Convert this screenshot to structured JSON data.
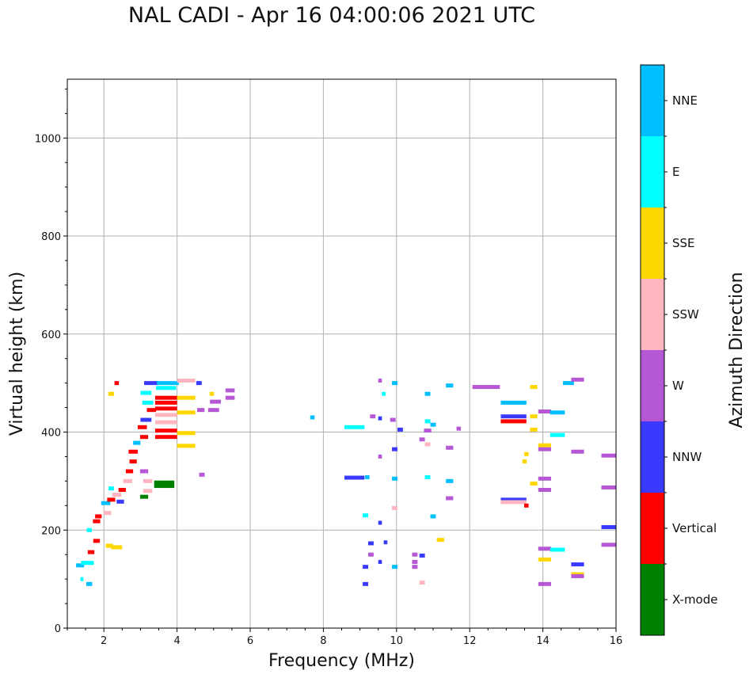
{
  "title": "NAL CADI - Apr 16 04:00:06 2021 UTC",
  "chart_data": {
    "type": "scatter",
    "title": "NAL CADI - Apr 16 04:00:06 2021 UTC",
    "xlabel": "Frequency (MHz)",
    "ylabel": "Virtual height (km)",
    "xlim": [
      1,
      16
    ],
    "ylim": [
      0,
      1120
    ],
    "x_ticks": [
      2,
      4,
      6,
      8,
      10,
      12,
      14,
      16
    ],
    "y_ticks": [
      0,
      200,
      400,
      600,
      800,
      1000
    ],
    "grid": true,
    "colorbar": {
      "label": "Azimuth Direction",
      "categories": [
        {
          "name": "X-mode",
          "color": "#008000"
        },
        {
          "name": "Vertical",
          "color": "#ff0000"
        },
        {
          "name": "NNW",
          "color": "#3a3aff"
        },
        {
          "name": "W",
          "color": "#b657d6"
        },
        {
          "name": "SSW",
          "color": "#ffb6c1"
        },
        {
          "name": "SSE",
          "color": "#ffd700"
        },
        {
          "name": "E",
          "color": "#00ffff"
        },
        {
          "name": "NNE",
          "color": "#00bfff"
        }
      ]
    },
    "echoes": [
      {
        "f": 1.35,
        "h": 128,
        "w": 0.22,
        "dir": "NNE"
      },
      {
        "f": 1.55,
        "h": 133,
        "w": 0.35,
        "dir": "E"
      },
      {
        "f": 1.6,
        "h": 90,
        "w": 0.16,
        "dir": "NNE"
      },
      {
        "f": 1.4,
        "h": 100,
        "w": 0.08,
        "dir": "E"
      },
      {
        "f": 1.65,
        "h": 155,
        "w": 0.18,
        "dir": "Vertical"
      },
      {
        "f": 1.6,
        "h": 200,
        "w": 0.14,
        "dir": "E"
      },
      {
        "f": 1.8,
        "h": 178,
        "w": 0.18,
        "dir": "Vertical"
      },
      {
        "f": 1.8,
        "h": 218,
        "w": 0.2,
        "dir": "Vertical"
      },
      {
        "f": 1.85,
        "h": 228,
        "w": 0.18,
        "dir": "Vertical"
      },
      {
        "f": 2.15,
        "h": 168,
        "w": 0.2,
        "dir": "SSE"
      },
      {
        "f": 2.35,
        "h": 165,
        "w": 0.3,
        "dir": "SSE"
      },
      {
        "f": 2.1,
        "h": 235,
        "w": 0.2,
        "dir": "SSW"
      },
      {
        "f": 2.05,
        "h": 255,
        "w": 0.25,
        "dir": "NNE"
      },
      {
        "f": 2.2,
        "h": 262,
        "w": 0.22,
        "dir": "Vertical"
      },
      {
        "f": 2.35,
        "h": 272,
        "w": 0.25,
        "dir": "SSW"
      },
      {
        "f": 2.45,
        "h": 258,
        "w": 0.2,
        "dir": "NNW"
      },
      {
        "f": 2.2,
        "h": 285,
        "w": 0.15,
        "dir": "E"
      },
      {
        "f": 2.5,
        "h": 282,
        "w": 0.2,
        "dir": "Vertical"
      },
      {
        "f": 2.65,
        "h": 300,
        "w": 0.25,
        "dir": "SSW"
      },
      {
        "f": 2.7,
        "h": 320,
        "w": 0.2,
        "dir": "Vertical"
      },
      {
        "f": 2.8,
        "h": 340,
        "w": 0.2,
        "dir": "Vertical"
      },
      {
        "f": 2.8,
        "h": 360,
        "w": 0.25,
        "dir": "Vertical"
      },
      {
        "f": 2.9,
        "h": 378,
        "w": 0.2,
        "dir": "NNE"
      },
      {
        "f": 2.35,
        "h": 500,
        "w": 0.12,
        "dir": "Vertical"
      },
      {
        "f": 2.2,
        "h": 478,
        "w": 0.16,
        "dir": "SSE"
      },
      {
        "f": 3.1,
        "h": 390,
        "w": 0.22,
        "dir": "Vertical"
      },
      {
        "f": 3.05,
        "h": 410,
        "w": 0.25,
        "dir": "Vertical"
      },
      {
        "f": 3.15,
        "h": 425,
        "w": 0.3,
        "dir": "NNW"
      },
      {
        "f": 3.3,
        "h": 445,
        "w": 0.25,
        "dir": "Vertical"
      },
      {
        "f": 3.2,
        "h": 460,
        "w": 0.3,
        "dir": "E"
      },
      {
        "f": 3.15,
        "h": 480,
        "w": 0.3,
        "dir": "E"
      },
      {
        "f": 3.3,
        "h": 500,
        "w": 0.4,
        "dir": "NNW"
      },
      {
        "f": 3.75,
        "h": 500,
        "w": 0.6,
        "dir": "NNE"
      },
      {
        "f": 3.7,
        "h": 490,
        "w": 0.55,
        "dir": "E"
      },
      {
        "f": 3.7,
        "h": 470,
        "w": 0.6,
        "dir": "Vertical"
      },
      {
        "f": 3.7,
        "h": 460,
        "w": 0.6,
        "dir": "Vertical"
      },
      {
        "f": 3.7,
        "h": 448,
        "w": 0.6,
        "dir": "Vertical"
      },
      {
        "f": 3.7,
        "h": 435,
        "w": 0.6,
        "dir": "SSW"
      },
      {
        "f": 3.7,
        "h": 420,
        "w": 0.6,
        "dir": "SSW"
      },
      {
        "f": 3.7,
        "h": 403,
        "w": 0.6,
        "dir": "Vertical"
      },
      {
        "f": 3.7,
        "h": 390,
        "w": 0.6,
        "dir": "Vertical"
      },
      {
        "f": 3.1,
        "h": 320,
        "w": 0.22,
        "dir": "W"
      },
      {
        "f": 3.2,
        "h": 300,
        "w": 0.25,
        "dir": "SSW"
      },
      {
        "f": 3.2,
        "h": 280,
        "w": 0.25,
        "dir": "SSW"
      },
      {
        "f": 3.1,
        "h": 268,
        "w": 0.22,
        "dir": "X-mode"
      },
      {
        "f": 3.65,
        "h": 297,
        "w": 0.55,
        "dir": "X-mode"
      },
      {
        "f": 3.65,
        "h": 290,
        "w": 0.55,
        "dir": "X-mode"
      },
      {
        "f": 4.25,
        "h": 505,
        "w": 0.5,
        "dir": "SSW"
      },
      {
        "f": 4.6,
        "h": 500,
        "w": 0.15,
        "dir": "NNW"
      },
      {
        "f": 4.25,
        "h": 470,
        "w": 0.5,
        "dir": "SSE"
      },
      {
        "f": 4.25,
        "h": 440,
        "w": 0.5,
        "dir": "SSE"
      },
      {
        "f": 4.25,
        "h": 398,
        "w": 0.5,
        "dir": "SSE"
      },
      {
        "f": 4.25,
        "h": 372,
        "w": 0.5,
        "dir": "SSE"
      },
      {
        "f": 4.65,
        "h": 445,
        "w": 0.2,
        "dir": "W"
      },
      {
        "f": 5.0,
        "h": 445,
        "w": 0.3,
        "dir": "W"
      },
      {
        "f": 5.05,
        "h": 462,
        "w": 0.3,
        "dir": "W"
      },
      {
        "f": 5.45,
        "h": 485,
        "w": 0.25,
        "dir": "W"
      },
      {
        "f": 5.45,
        "h": 470,
        "w": 0.25,
        "dir": "W"
      },
      {
        "f": 4.95,
        "h": 478,
        "w": 0.12,
        "dir": "SSE"
      },
      {
        "f": 4.68,
        "h": 313,
        "w": 0.15,
        "dir": "W"
      },
      {
        "f": 7.7,
        "h": 430,
        "w": 0.12,
        "dir": "NNE"
      },
      {
        "f": 8.85,
        "h": 410,
        "w": 0.55,
        "dir": "E"
      },
      {
        "f": 8.85,
        "h": 307,
        "w": 0.55,
        "dir": "NNW"
      },
      {
        "f": 9.2,
        "h": 308,
        "w": 0.12,
        "dir": "NNE"
      },
      {
        "f": 9.15,
        "h": 230,
        "w": 0.15,
        "dir": "E"
      },
      {
        "f": 9.3,
        "h": 173,
        "w": 0.15,
        "dir": "NNW"
      },
      {
        "f": 9.3,
        "h": 150,
        "w": 0.15,
        "dir": "W"
      },
      {
        "f": 9.15,
        "h": 125,
        "w": 0.15,
        "dir": "NNW"
      },
      {
        "f": 9.15,
        "h": 90,
        "w": 0.15,
        "dir": "NNW"
      },
      {
        "f": 9.55,
        "h": 135,
        "w": 0.1,
        "dir": "NNW"
      },
      {
        "f": 9.55,
        "h": 215,
        "w": 0.1,
        "dir": "NNW"
      },
      {
        "f": 9.55,
        "h": 350,
        "w": 0.1,
        "dir": "W"
      },
      {
        "f": 9.55,
        "h": 428,
        "w": 0.1,
        "dir": "NNW"
      },
      {
        "f": 9.35,
        "h": 432,
        "w": 0.15,
        "dir": "W"
      },
      {
        "f": 9.65,
        "h": 478,
        "w": 0.1,
        "dir": "E"
      },
      {
        "f": 9.55,
        "h": 505,
        "w": 0.1,
        "dir": "W"
      },
      {
        "f": 9.95,
        "h": 500,
        "w": 0.15,
        "dir": "NNE"
      },
      {
        "f": 9.9,
        "h": 425,
        "w": 0.15,
        "dir": "W"
      },
      {
        "f": 10.1,
        "h": 405,
        "w": 0.15,
        "dir": "NNW"
      },
      {
        "f": 9.95,
        "h": 365,
        "w": 0.15,
        "dir": "NNW"
      },
      {
        "f": 9.95,
        "h": 305,
        "w": 0.15,
        "dir": "NNE"
      },
      {
        "f": 9.95,
        "h": 245,
        "w": 0.15,
        "dir": "SSW"
      },
      {
        "f": 9.95,
        "h": 125,
        "w": 0.15,
        "dir": "NNE"
      },
      {
        "f": 9.7,
        "h": 175,
        "w": 0.1,
        "dir": "NNW"
      },
      {
        "f": 10.85,
        "h": 478,
        "w": 0.15,
        "dir": "NNE"
      },
      {
        "f": 10.85,
        "h": 422,
        "w": 0.15,
        "dir": "E"
      },
      {
        "f": 11.0,
        "h": 415,
        "w": 0.15,
        "dir": "NNE"
      },
      {
        "f": 10.85,
        "h": 403,
        "w": 0.2,
        "dir": "W"
      },
      {
        "f": 10.7,
        "h": 385,
        "w": 0.15,
        "dir": "W"
      },
      {
        "f": 10.85,
        "h": 375,
        "w": 0.15,
        "dir": "SSW"
      },
      {
        "f": 10.85,
        "h": 308,
        "w": 0.15,
        "dir": "E"
      },
      {
        "f": 11.0,
        "h": 228,
        "w": 0.15,
        "dir": "NNE"
      },
      {
        "f": 11.2,
        "h": 180,
        "w": 0.2,
        "dir": "SSE"
      },
      {
        "f": 10.5,
        "h": 150,
        "w": 0.15,
        "dir": "W"
      },
      {
        "f": 10.7,
        "h": 148,
        "w": 0.15,
        "dir": "NNW"
      },
      {
        "f": 10.5,
        "h": 135,
        "w": 0.15,
        "dir": "W"
      },
      {
        "f": 10.5,
        "h": 125,
        "w": 0.15,
        "dir": "W"
      },
      {
        "f": 10.7,
        "h": 93,
        "w": 0.15,
        "dir": "SSW"
      },
      {
        "f": 11.45,
        "h": 495,
        "w": 0.2,
        "dir": "NNE"
      },
      {
        "f": 11.7,
        "h": 407,
        "w": 0.12,
        "dir": "W"
      },
      {
        "f": 11.45,
        "h": 368,
        "w": 0.2,
        "dir": "W"
      },
      {
        "f": 11.45,
        "h": 300,
        "w": 0.2,
        "dir": "NNE"
      },
      {
        "f": 11.45,
        "h": 265,
        "w": 0.2,
        "dir": "W"
      },
      {
        "f": 12.45,
        "h": 492,
        "w": 0.75,
        "dir": "W"
      },
      {
        "f": 13.2,
        "h": 460,
        "w": 0.7,
        "dir": "NNE"
      },
      {
        "f": 13.2,
        "h": 432,
        "w": 0.7,
        "dir": "NNW"
      },
      {
        "f": 13.2,
        "h": 422,
        "w": 0.7,
        "dir": "Vertical"
      },
      {
        "f": 13.2,
        "h": 262,
        "w": 0.7,
        "dir": "NNW"
      },
      {
        "f": 13.2,
        "h": 257,
        "w": 0.7,
        "dir": "SSW"
      },
      {
        "f": 13.55,
        "h": 250,
        "w": 0.12,
        "dir": "Vertical"
      },
      {
        "f": 13.55,
        "h": 355,
        "w": 0.12,
        "dir": "SSE"
      },
      {
        "f": 13.5,
        "h": 340,
        "w": 0.12,
        "dir": "SSE"
      },
      {
        "f": 13.75,
        "h": 492,
        "w": 0.2,
        "dir": "SSE"
      },
      {
        "f": 13.75,
        "h": 432,
        "w": 0.2,
        "dir": "SSE"
      },
      {
        "f": 13.75,
        "h": 405,
        "w": 0.2,
        "dir": "SSE"
      },
      {
        "f": 13.75,
        "h": 295,
        "w": 0.2,
        "dir": "SSE"
      },
      {
        "f": 14.05,
        "h": 442,
        "w": 0.35,
        "dir": "W"
      },
      {
        "f": 14.4,
        "h": 440,
        "w": 0.4,
        "dir": "NNE"
      },
      {
        "f": 14.4,
        "h": 394,
        "w": 0.4,
        "dir": "E"
      },
      {
        "f": 14.05,
        "h": 373,
        "w": 0.35,
        "dir": "SSE"
      },
      {
        "f": 14.05,
        "h": 365,
        "w": 0.35,
        "dir": "W"
      },
      {
        "f": 14.05,
        "h": 305,
        "w": 0.35,
        "dir": "W"
      },
      {
        "f": 14.05,
        "h": 282,
        "w": 0.35,
        "dir": "W"
      },
      {
        "f": 14.05,
        "h": 162,
        "w": 0.35,
        "dir": "W"
      },
      {
        "f": 14.4,
        "h": 160,
        "w": 0.4,
        "dir": "E"
      },
      {
        "f": 14.05,
        "h": 140,
        "w": 0.35,
        "dir": "SSE"
      },
      {
        "f": 14.05,
        "h": 90,
        "w": 0.35,
        "dir": "W"
      },
      {
        "f": 14.7,
        "h": 500,
        "w": 0.3,
        "dir": "NNE"
      },
      {
        "f": 14.95,
        "h": 507,
        "w": 0.35,
        "dir": "W"
      },
      {
        "f": 14.95,
        "h": 360,
        "w": 0.35,
        "dir": "W"
      },
      {
        "f": 14.95,
        "h": 130,
        "w": 0.35,
        "dir": "NNW"
      },
      {
        "f": 14.95,
        "h": 110,
        "w": 0.35,
        "dir": "SSE"
      },
      {
        "f": 14.95,
        "h": 106,
        "w": 0.35,
        "dir": "W"
      },
      {
        "f": 15.8,
        "h": 352,
        "w": 0.4,
        "dir": "W"
      },
      {
        "f": 15.8,
        "h": 287,
        "w": 0.4,
        "dir": "W"
      },
      {
        "f": 15.8,
        "h": 206,
        "w": 0.4,
        "dir": "NNW"
      },
      {
        "f": 15.8,
        "h": 170,
        "w": 0.4,
        "dir": "W"
      }
    ]
  }
}
